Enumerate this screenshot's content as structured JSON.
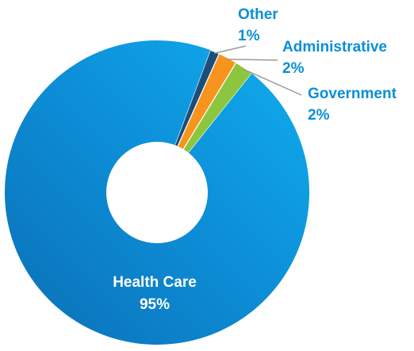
{
  "chart_data": {
    "type": "pie",
    "slices": [
      {
        "label": "Health Care",
        "value_label": "95%",
        "value": 95,
        "color": "#0a8fd8"
      },
      {
        "label": "Government",
        "value_label": "2%",
        "value": 2,
        "color": "#8cc63f"
      },
      {
        "label": "Administrative",
        "value_label": "2%",
        "value": 2,
        "color": "#f7941d"
      },
      {
        "label": "Other",
        "value_label": "1%",
        "value": 1,
        "color": "#1b4f7a"
      }
    ],
    "label_color": "#0a8fd8",
    "leader_color": "#9a9a9a",
    "donut_hole": true
  }
}
